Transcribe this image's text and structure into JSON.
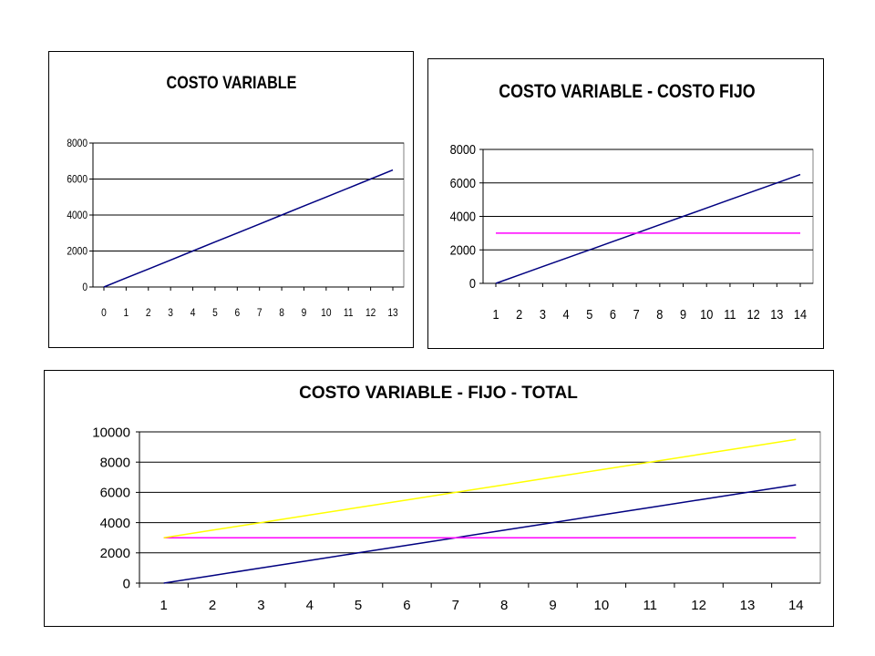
{
  "chart_data": [
    {
      "type": "line",
      "title": "COSTO VARIABLE",
      "x": [
        0,
        1,
        2,
        3,
        4,
        5,
        6,
        7,
        8,
        9,
        10,
        11,
        12,
        13
      ],
      "ylim": [
        0,
        8000
      ],
      "yticks": [
        0,
        2000,
        4000,
        6000,
        8000
      ],
      "grid": true,
      "series": [
        {
          "values": [
            0,
            500,
            1000,
            1500,
            2000,
            2500,
            3000,
            3500,
            4000,
            4500,
            5000,
            5500,
            6000,
            6500
          ],
          "color": "#000080"
        }
      ]
    },
    {
      "type": "line",
      "title": "COSTO VARIABLE - COSTO FIJO",
      "x": [
        1,
        2,
        3,
        4,
        5,
        6,
        7,
        8,
        9,
        10,
        11,
        12,
        13,
        14
      ],
      "ylim": [
        0,
        8000
      ],
      "yticks": [
        0,
        2000,
        4000,
        6000,
        8000
      ],
      "grid": true,
      "series": [
        {
          "values": [
            0,
            500,
            1000,
            1500,
            2000,
            2500,
            3000,
            3500,
            4000,
            4500,
            5000,
            5500,
            6000,
            6500
          ],
          "color": "#000080"
        },
        {
          "values": [
            3000,
            3000,
            3000,
            3000,
            3000,
            3000,
            3000,
            3000,
            3000,
            3000,
            3000,
            3000,
            3000,
            3000
          ],
          "color": "#ff00ff"
        }
      ]
    },
    {
      "type": "line",
      "title": "COSTO VARIABLE - FIJO - TOTAL",
      "x": [
        1,
        2,
        3,
        4,
        5,
        6,
        7,
        8,
        9,
        10,
        11,
        12,
        13,
        14
      ],
      "ylim": [
        0,
        10000
      ],
      "yticks": [
        0,
        2000,
        4000,
        6000,
        8000,
        10000
      ],
      "grid": true,
      "series": [
        {
          "values": [
            0,
            500,
            1000,
            1500,
            2000,
            2500,
            3000,
            3500,
            4000,
            4500,
            5000,
            5500,
            6000,
            6500
          ],
          "color": "#000080"
        },
        {
          "values": [
            3000,
            3000,
            3000,
            3000,
            3000,
            3000,
            3000,
            3000,
            3000,
            3000,
            3000,
            3000,
            3000,
            3000
          ],
          "color": "#ff00ff"
        },
        {
          "values": [
            3000,
            3500,
            4000,
            4500,
            5000,
            5500,
            6000,
            6500,
            7000,
            7500,
            8000,
            8500,
            9000,
            9500
          ],
          "color": "#ffff00"
        }
      ]
    }
  ]
}
